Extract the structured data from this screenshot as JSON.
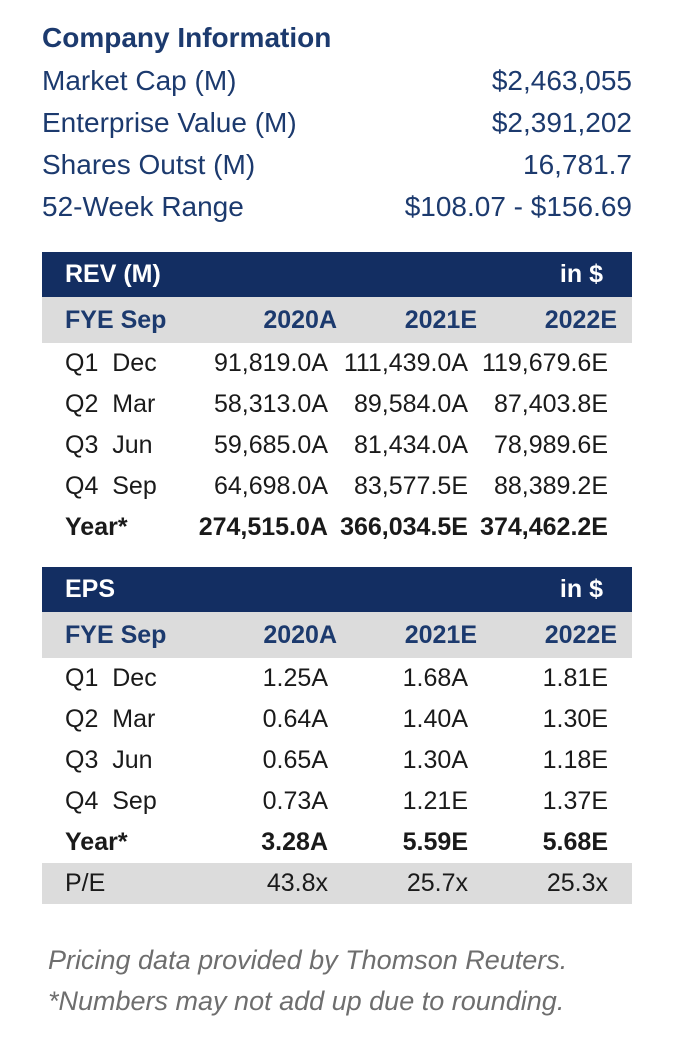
{
  "company_info": {
    "title": "Company Information",
    "rows": [
      {
        "label": "Market Cap (M)",
        "value": "$2,463,055"
      },
      {
        "label": "Enterprise Value (M)",
        "value": "$2,391,202"
      },
      {
        "label": "Shares Outst (M)",
        "value": "16,781.7"
      },
      {
        "label": "52-Week Range",
        "value": "$108.07 - $156.69"
      }
    ]
  },
  "rev_table": {
    "title": "REV (M)",
    "unit": "in $",
    "fye_label": "FYE Sep",
    "columns": [
      "2020A",
      "2021E",
      "2022E"
    ],
    "rows": [
      {
        "label": "Q1  Dec",
        "values": [
          "91,819.0A",
          "111,439.0A",
          "119,679.6E"
        ]
      },
      {
        "label": "Q2  Mar",
        "values": [
          "58,313.0A",
          "89,584.0A",
          "87,403.8E"
        ]
      },
      {
        "label": "Q3  Jun",
        "values": [
          "59,685.0A",
          "81,434.0A",
          "78,989.6E"
        ]
      },
      {
        "label": "Q4  Sep",
        "values": [
          "64,698.0A",
          "83,577.5E",
          "88,389.2E"
        ]
      }
    ],
    "total_row": {
      "label": "Year*",
      "values": [
        "274,515.0A",
        "366,034.5E",
        "374,462.2E"
      ]
    }
  },
  "eps_table": {
    "title": "EPS",
    "unit": "in $",
    "fye_label": "FYE Sep",
    "columns": [
      "2020A",
      "2021E",
      "2022E"
    ],
    "rows": [
      {
        "label": "Q1  Dec",
        "values": [
          "1.25A",
          "1.68A",
          "1.81E"
        ]
      },
      {
        "label": "Q2  Mar",
        "values": [
          "0.64A",
          "1.40A",
          "1.30E"
        ]
      },
      {
        "label": "Q3  Jun",
        "values": [
          "0.65A",
          "1.30A",
          "1.18E"
        ]
      },
      {
        "label": "Q4  Sep",
        "values": [
          "0.73A",
          "1.21E",
          "1.37E"
        ]
      }
    ],
    "total_row": {
      "label": "Year*",
      "values": [
        "3.28A",
        "5.59E",
        "5.68E"
      ]
    },
    "pe_row": {
      "label": "P/E",
      "values": [
        "43.8x",
        "25.7x",
        "25.3x"
      ]
    }
  },
  "footnotes": [
    "Pricing data provided by Thomson Reuters.",
    "*Numbers may not add up due to rounding."
  ],
  "colors": {
    "header_navy": "#132E62",
    "navy_text": "#1C3A6E",
    "band_gray": "#DCDCDC",
    "footnote_gray": "#6E6E6E"
  }
}
